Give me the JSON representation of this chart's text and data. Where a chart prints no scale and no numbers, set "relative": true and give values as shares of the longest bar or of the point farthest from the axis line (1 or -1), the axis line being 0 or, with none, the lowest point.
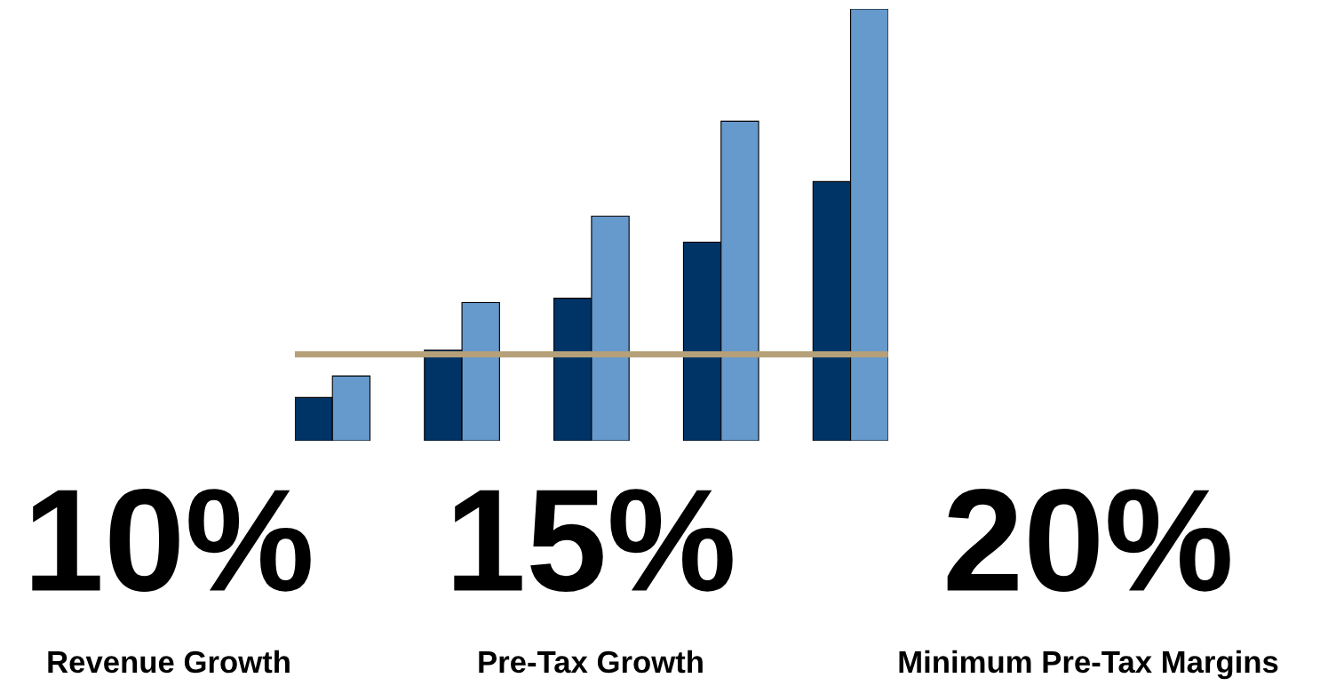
{
  "chart_data": {
    "type": "bar",
    "relative": true,
    "grid": false,
    "legend": false,
    "categories": [
      null,
      null,
      null,
      null,
      null
    ],
    "series": [
      {
        "color": "#003366",
        "values": [
          0.1,
          0.21,
          0.33,
          0.46,
          0.6
        ]
      },
      {
        "color": "#6699cc",
        "values": [
          0.15,
          0.32,
          0.52,
          0.74,
          1.0
        ]
      }
    ],
    "ref_lines": [
      {
        "axis": "y",
        "value": 0.2,
        "color": "#b5a07a",
        "line_style": "solid"
      }
    ],
    "annotations": [
      "10%",
      "Revenue Growth",
      "15%",
      "Pre-Tax Growth",
      "20%",
      "Minimum Pre-Tax Margins"
    ]
  }
}
